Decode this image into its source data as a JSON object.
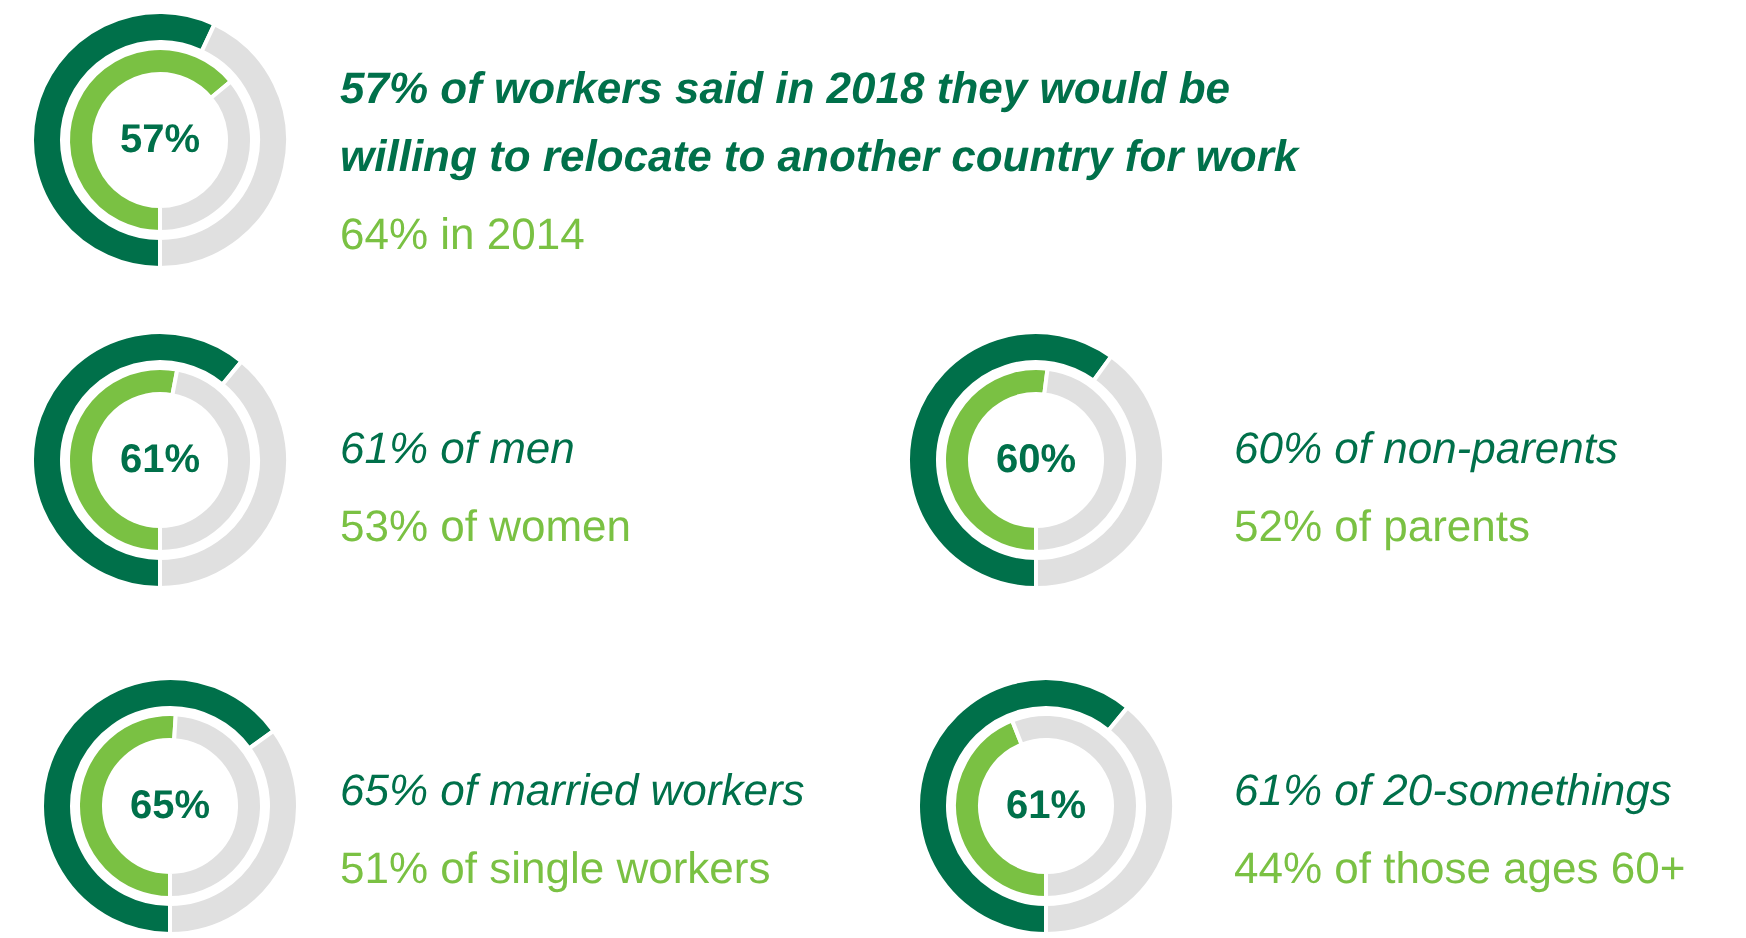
{
  "chart_data": [
    {
      "type": "donut",
      "title": "57% of workers said in 2018 they would be willing to relocate to another country for work",
      "subtitle": "64% in 2014",
      "annotations": [
        "57%"
      ],
      "categories": [
        null,
        null
      ],
      "series": [
        {
          "values": [
            57,
            43
          ],
          "colors": [
            "#00704a",
            "#e0e0e0"
          ]
        },
        {
          "values": [
            64,
            36
          ],
          "colors": [
            "#7ac143",
            "#e0e0e0"
          ]
        }
      ]
    },
    {
      "type": "donut",
      "title": "61% of men",
      "subtitle": "53% of women",
      "annotations": [
        "61%"
      ],
      "categories": [
        null,
        null
      ],
      "series": [
        {
          "values": [
            61,
            39
          ],
          "colors": [
            "#00704a",
            "#e0e0e0"
          ]
        },
        {
          "values": [
            53,
            47
          ],
          "colors": [
            "#7ac143",
            "#e0e0e0"
          ]
        }
      ]
    },
    {
      "type": "donut",
      "title": "60% of non-parents",
      "subtitle": "52% of parents",
      "annotations": [
        "60%"
      ],
      "categories": [
        null,
        null
      ],
      "series": [
        {
          "values": [
            60,
            40
          ],
          "colors": [
            "#00704a",
            "#e0e0e0"
          ]
        },
        {
          "values": [
            52,
            48
          ],
          "colors": [
            "#7ac143",
            "#e0e0e0"
          ]
        }
      ]
    },
    {
      "type": "donut",
      "title": "65% of married workers",
      "subtitle": "51% of single workers",
      "annotations": [
        "65%"
      ],
      "categories": [
        null,
        null
      ],
      "series": [
        {
          "values": [
            65,
            35
          ],
          "colors": [
            "#00704a",
            "#e0e0e0"
          ]
        },
        {
          "values": [
            51,
            49
          ],
          "colors": [
            "#7ac143",
            "#e0e0e0"
          ]
        }
      ]
    },
    {
      "type": "donut",
      "title": "61% of 20-somethings",
      "subtitle": "44% of those ages 60+",
      "annotations": [
        "61%"
      ],
      "categories": [
        null,
        null
      ],
      "series": [
        {
          "values": [
            61,
            39
          ],
          "colors": [
            "#00704a",
            "#e0e0e0"
          ]
        },
        {
          "values": [
            44,
            56
          ],
          "colors": [
            "#7ac143",
            "#e0e0e0"
          ]
        }
      ]
    }
  ]
}
